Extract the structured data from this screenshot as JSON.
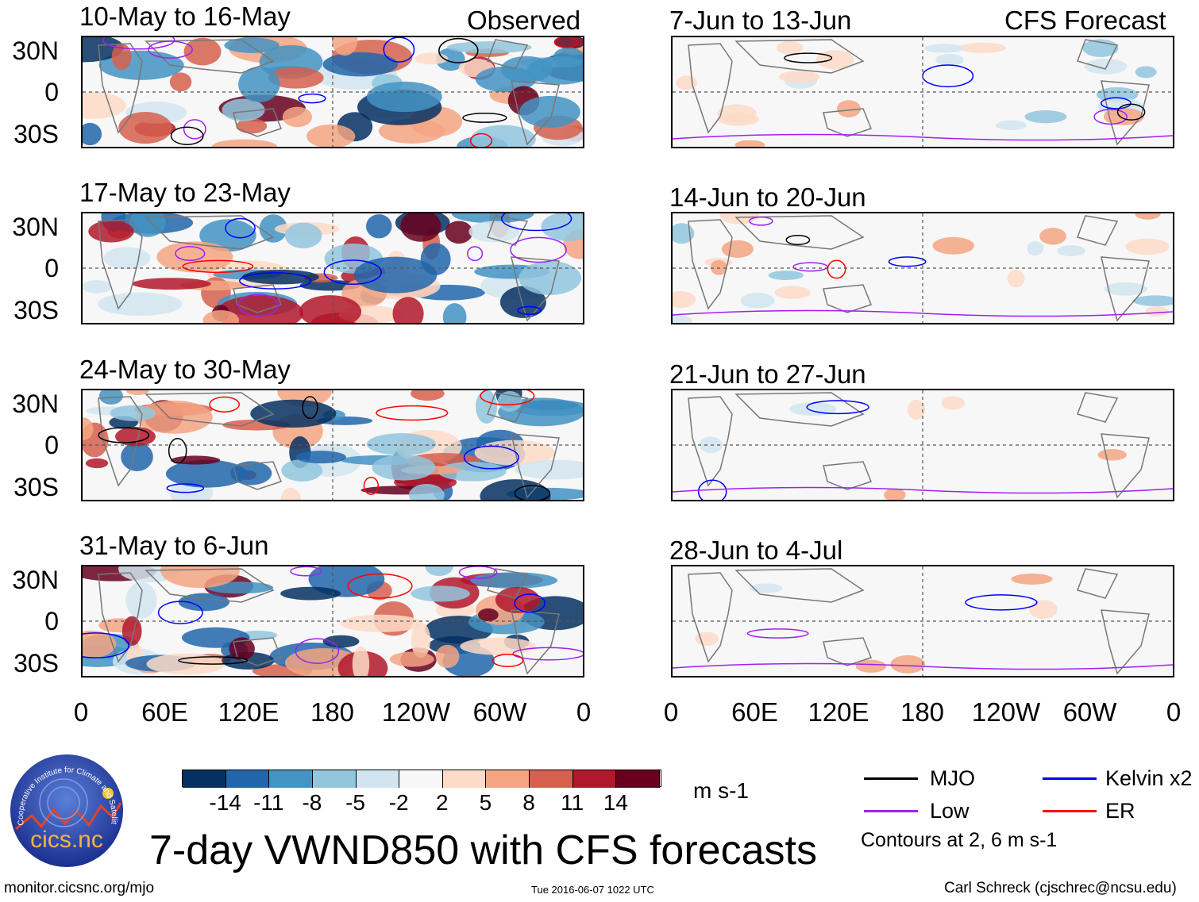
{
  "header": {
    "observed_label": "Observed",
    "forecast_label": "CFS Forecast"
  },
  "observed_panels": [
    {
      "title": "10-May to 16-May"
    },
    {
      "title": "17-May to 23-May"
    },
    {
      "title": "24-May to 30-May"
    },
    {
      "title": "31-May to 6-Jun"
    }
  ],
  "forecast_panels": [
    {
      "title": "7-Jun to 13-Jun"
    },
    {
      "title": "14-Jun to 20-Jun"
    },
    {
      "title": "21-Jun to 27-Jun"
    },
    {
      "title": "28-Jun to 4-Jul"
    }
  ],
  "lat_labels": [
    "30N",
    "0",
    "30S"
  ],
  "lon_labels": [
    "0",
    "60E",
    "120E",
    "180",
    "120W",
    "60W",
    "0"
  ],
  "colorbar": {
    "colors": [
      "#053061",
      "#2166ac",
      "#4393c3",
      "#92c5de",
      "#d1e5f0",
      "#f7f7f7",
      "#fddbc7",
      "#f4a582",
      "#d6604d",
      "#b2182b",
      "#67001f"
    ],
    "labels": [
      "-14",
      "-11",
      "-8",
      "-5",
      "-2",
      "2",
      "5",
      "8",
      "11",
      "14"
    ],
    "units": "m s-1"
  },
  "legend": {
    "items": [
      {
        "label": "MJO",
        "color": "#000000"
      },
      {
        "label": "Kelvin x2",
        "color": "#0000ff"
      },
      {
        "label": "Low",
        "color": "#a020f0"
      },
      {
        "label": "ER",
        "color": "#ff0000"
      }
    ],
    "contours_note": "Contours at 2, 6 m s-1"
  },
  "title": "7-day VWND850 with CFS forecasts",
  "logo_text": "cics.nc",
  "logo_ring_text": "Cooperative Institute for Climate and Satellites",
  "footer": {
    "url": "monitor.cicsnc.org/mjo",
    "timestamp": "Tue 2016-06-07 1022 UTC",
    "author": "Carl Schreck (cjschrec@ncsu.edu)"
  }
}
